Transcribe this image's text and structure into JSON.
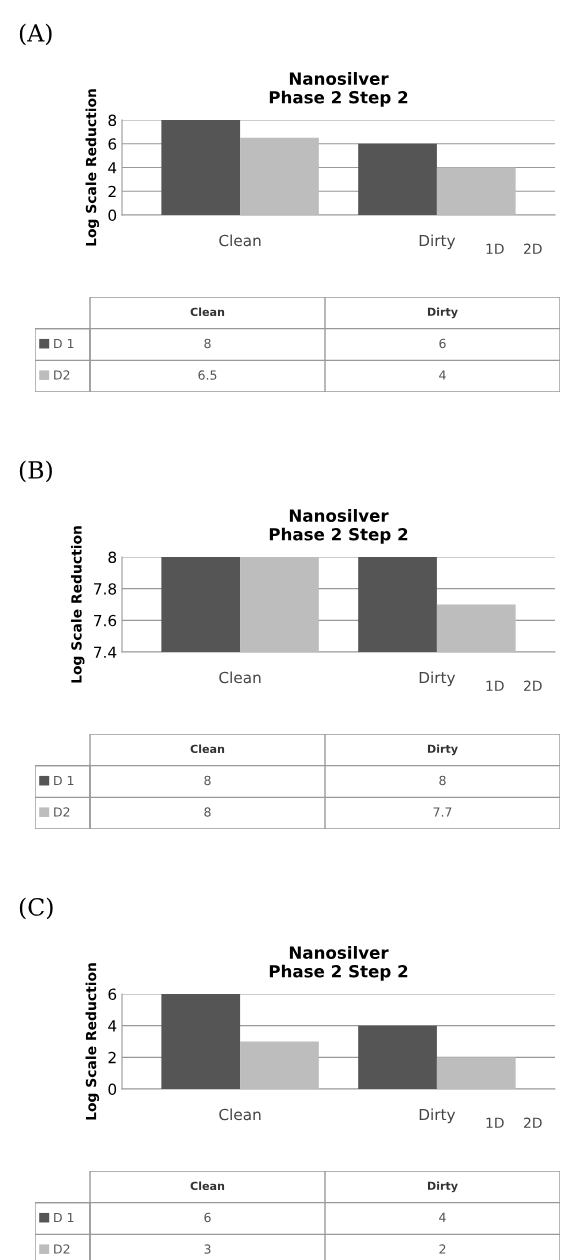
{
  "chart_data": [
    {
      "type": "bar",
      "title": "Nanosilver\nPhase 2 Step 2",
      "ylabel": "Log Scale Reduction",
      "categories": [
        "Clean",
        "Dirty"
      ],
      "series": [
        {
          "name": "D 1",
          "color": "#555555",
          "values": [
            8,
            6
          ]
        },
        {
          "name": "D2",
          "color": "#bdbdbd",
          "values": [
            6.5,
            4
          ]
        }
      ],
      "ylim": [
        0,
        8
      ],
      "yticks": [
        0,
        2,
        4,
        6,
        8
      ],
      "grid": "y",
      "legend": "bottom left",
      "data_labels": true,
      "annotations": [
        "(A)",
        "1D",
        "2D"
      ]
    },
    {
      "type": "bar",
      "title": "Nanosilver\nPhase 2 Step 2",
      "ylabel": "Log Scale Reduction",
      "categories": [
        "Clean",
        "Dirty"
      ],
      "series": [
        {
          "name": "D 1",
          "color": "#555555",
          "values": [
            8,
            8
          ]
        },
        {
          "name": "D2",
          "color": "#bdbdbd",
          "values": [
            8,
            7.7
          ]
        }
      ],
      "ylim": [
        7.4,
        8
      ],
      "yticks": [
        7.4,
        7.6,
        7.8,
        8
      ],
      "grid": "y",
      "legend": "bottom left",
      "data_labels": true,
      "annotations": [
        "(B)",
        "1D",
        "2D"
      ]
    },
    {
      "type": "bar",
      "title": "Nanosilver\nPhase 2 Step 2",
      "ylabel": "Log Scale Reduction",
      "categories": [
        "Clean",
        "Dirty"
      ],
      "series": [
        {
          "name": "D 1",
          "color": "#555555",
          "values": [
            6,
            4
          ]
        },
        {
          "name": "D2",
          "color": "#bdbdbd",
          "values": [
            3,
            2
          ]
        }
      ],
      "ylim": [
        0,
        6
      ],
      "yticks": [
        0,
        2,
        4,
        6
      ],
      "grid": "y",
      "legend": "bottom left",
      "data_labels": true,
      "annotations": [
        "(C)",
        "1D",
        "2D"
      ]
    }
  ]
}
